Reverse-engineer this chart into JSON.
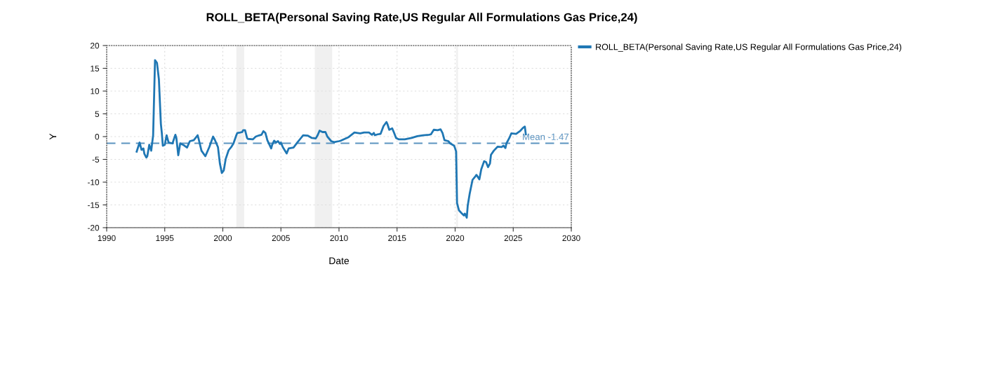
{
  "chart_data": {
    "type": "line",
    "title": "ROLL_BETA(Personal Saving Rate,US Regular All Formulations Gas Price,24)",
    "xlabel": "Date",
    "ylabel": "Y",
    "series": [
      {
        "name": "ROLL_BETA(Personal Saving Rate,US Regular All Formulations Gas Price,24)",
        "color": "#1f77b4",
        "x": [
          "1992-08",
          "1992-11",
          "1993-01",
          "1993-03",
          "1993-04",
          "1993-06",
          "1993-07",
          "1993-09",
          "1993-11",
          "1994-01",
          "1994-03",
          "1994-05",
          "1994-07",
          "1994-09",
          "1994-10",
          "1994-11",
          "1995-01",
          "1995-03",
          "1995-05",
          "1995-09",
          "1995-12",
          "1996-01",
          "1996-03",
          "1996-05",
          "1996-08",
          "1996-12",
          "1997-03",
          "1997-07",
          "1997-11",
          "1997-12",
          "1998-03",
          "1998-07",
          "1998-11",
          "1999-03",
          "1999-05",
          "1999-08",
          "1999-10",
          "1999-12",
          "2000-02",
          "2000-04",
          "2000-07",
          "2000-10",
          "2000-12",
          "2001-03",
          "2001-04",
          "2001-07",
          "2001-09",
          "2001-10",
          "2001-12",
          "2002-02",
          "2002-03",
          "2002-08",
          "2002-11",
          "2003-03",
          "2003-05",
          "2003-07",
          "2003-09",
          "2003-11",
          "2004-03",
          "2004-04",
          "2004-06",
          "2004-08",
          "2004-10",
          "2004-12",
          "2005-01",
          "2005-03",
          "2005-07",
          "2005-09",
          "2006-02",
          "2006-06",
          "2006-09",
          "2006-12",
          "2007-05",
          "2007-09",
          "2008-01",
          "2008-03",
          "2008-05",
          "2008-08",
          "2008-11",
          "2009-01",
          "2009-05",
          "2009-08",
          "2010-01",
          "2010-03",
          "2010-07",
          "2010-11",
          "2011-05",
          "2011-11",
          "2012-03",
          "2012-08",
          "2012-11",
          "2013-01",
          "2013-02",
          "2013-05",
          "2013-08",
          "2013-11",
          "2014-02",
          "2014-03",
          "2014-05",
          "2014-08",
          "2014-10",
          "2014-12",
          "2015-03",
          "2015-09",
          "2016-04",
          "2016-10",
          "2017-04",
          "2017-10",
          "2017-12",
          "2018-03",
          "2018-07",
          "2018-10",
          "2018-12",
          "2019-02",
          "2019-06",
          "2019-08",
          "2019-12",
          "2020-01",
          "2020-02",
          "2020-03",
          "2020-05",
          "2020-08",
          "2020-10",
          "2020-11",
          "2021-01",
          "2021-02",
          "2021-04",
          "2021-07",
          "2021-10",
          "2021-11",
          "2022-02",
          "2022-04",
          "2022-07",
          "2022-09",
          "2022-11",
          "2023-01",
          "2023-02",
          "2023-05",
          "2023-09",
          "2024-01",
          "2024-03",
          "2024-05",
          "2024-06",
          "2024-09",
          "2024-11",
          "2025-04",
          "2025-08",
          "2025-11",
          "2026-01",
          "2026-02"
        ],
        "values": [
          -3.3,
          -1.3,
          -2.9,
          -2.6,
          -3.8,
          -4.6,
          -4.3,
          -1.8,
          -3.1,
          0.3,
          16.8,
          16.2,
          12.6,
          2.8,
          0.8,
          -2.0,
          -1.8,
          0.3,
          -1.3,
          -1.5,
          0.4,
          -0.3,
          -4.1,
          -1.5,
          -1.8,
          -2.4,
          -1.0,
          -0.8,
          0.3,
          -0.5,
          -3.1,
          -4.3,
          -2.3,
          0.0,
          -0.8,
          -2.3,
          -5.9,
          -8.0,
          -7.4,
          -4.9,
          -3.0,
          -2.2,
          -1.5,
          0.3,
          0.8,
          0.9,
          1.0,
          1.4,
          1.4,
          -0.3,
          -0.5,
          -0.6,
          0.0,
          0.3,
          0.4,
          1.2,
          0.8,
          -0.8,
          -2.6,
          -1.8,
          -0.9,
          -1.3,
          -1.0,
          -1.6,
          -1.3,
          -2.3,
          -3.7,
          -2.6,
          -2.4,
          -1.3,
          -0.5,
          0.3,
          0.2,
          -0.3,
          -0.4,
          0.3,
          1.3,
          1.0,
          1.0,
          0.0,
          -1.0,
          -1.2,
          -1.0,
          -0.9,
          -0.5,
          -0.1,
          0.9,
          0.7,
          0.9,
          0.9,
          0.4,
          0.8,
          0.3,
          0.5,
          0.6,
          2.3,
          3.2,
          2.8,
          1.5,
          1.8,
          0.8,
          -0.3,
          -0.6,
          -0.6,
          -0.3,
          0.1,
          0.3,
          0.4,
          0.5,
          1.5,
          1.4,
          1.6,
          0.8,
          -0.8,
          -1.0,
          -1.5,
          -2.0,
          -2.6,
          -3.3,
          -14.6,
          -16.2,
          -16.9,
          -17.3,
          -16.9,
          -17.8,
          -15.1,
          -12.6,
          -9.5,
          -8.7,
          -8.4,
          -9.4,
          -7.2,
          -5.4,
          -5.6,
          -6.7,
          -5.9,
          -4.0,
          -3.1,
          -2.2,
          -2.3,
          -2.0,
          -2.5,
          -1.5,
          -0.3,
          0.7,
          0.6,
          1.2,
          1.9,
          2.2,
          0.5
        ]
      }
    ],
    "xlim": [
      "1990",
      "2030"
    ],
    "xticks": [
      "1990",
      "1995",
      "2000",
      "2005",
      "2010",
      "2015",
      "2020",
      "2025",
      "2030"
    ],
    "ylim": [
      -20,
      20
    ],
    "yticks": [
      -20,
      -15,
      -10,
      -5,
      0,
      5,
      10,
      15,
      20
    ],
    "ref_lines": [
      {
        "axis": "y",
        "value": -1.47,
        "label": "Mean -1.47",
        "color": "#5b93c0",
        "line_style": "dashed"
      }
    ],
    "bands": [
      {
        "axis": "x",
        "from": "2001-03",
        "to": "2001-11",
        "color": "#f0f0f0"
      },
      {
        "axis": "x",
        "from": "2007-12",
        "to": "2009-06",
        "color": "#f0f0f0"
      },
      {
        "axis": "x",
        "from": "2020-02",
        "to": "2020-04",
        "color": "#f0f0f0"
      }
    ],
    "grid": true,
    "legend": "right"
  }
}
